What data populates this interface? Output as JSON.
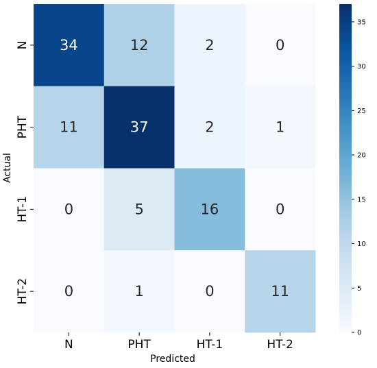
{
  "chart_data": {
    "type": "heatmap",
    "xlabel": "Predicted",
    "ylabel": "Actual",
    "x_categories": [
      "N",
      "PHT",
      "HT-1",
      "HT-2"
    ],
    "y_categories": [
      "N",
      "PHT",
      "HT-1",
      "HT-2"
    ],
    "values": [
      [
        34,
        12,
        2,
        0
      ],
      [
        11,
        37,
        2,
        1
      ],
      [
        0,
        5,
        16,
        0
      ],
      [
        0,
        1,
        0,
        11
      ]
    ],
    "colorbar": {
      "min": 0,
      "max": 37,
      "ticks": [
        0,
        5,
        10,
        15,
        20,
        25,
        30,
        35
      ],
      "colormap": "Blues"
    },
    "colors": {
      "low": "#f7fbff",
      "high": "#08306b"
    }
  }
}
